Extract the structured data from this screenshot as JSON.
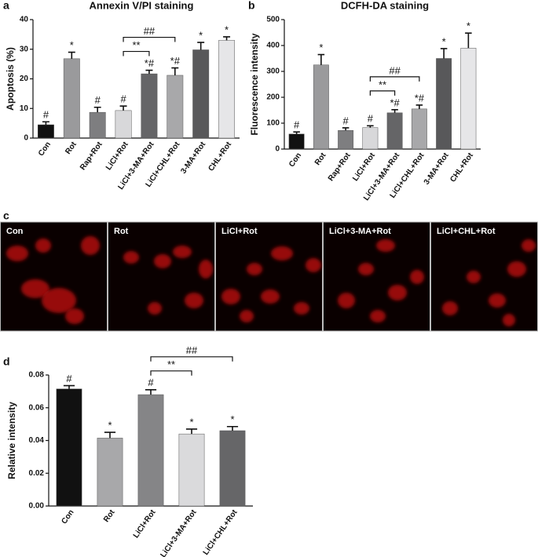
{
  "chart_data": [
    {
      "type": "bar",
      "panel_label": "a",
      "title": "Annexin V/PI staining",
      "y_label": "Apoptosis (%)",
      "categories": [
        "Con",
        "Rot",
        "Rap+Rot",
        "LiCl+Rot",
        "LiCl+3-MA+Rot",
        "LiCl+CHL+Rot",
        "3-MA+Rot",
        "CHL+Rot"
      ],
      "values": [
        4.5,
        26.8,
        8.7,
        9.3,
        21.7,
        21.2,
        29.8,
        33
      ],
      "errors": [
        1,
        2.2,
        1.7,
        1.5,
        1.2,
        2.5,
        2.5,
        1.2
      ],
      "colors": [
        "#111111",
        "#9a9a9c",
        "#7e7e80",
        "#d8d8da",
        "#656567",
        "#a8a8aa",
        "#58585a",
        "#e6e6e8"
      ],
      "annotations": [
        "#",
        "*",
        "#",
        "#",
        "*#",
        "*#",
        "*",
        "*"
      ],
      "brackets": [
        {
          "label": "**",
          "between": [
            "LiCl+Rot",
            "LiCl+3-MA+Rot"
          ]
        },
        {
          "label": "##",
          "between": [
            "LiCl+Rot",
            "LiCl+CHL+Rot"
          ]
        }
      ],
      "ylim": [
        0,
        40
      ],
      "yticks": [
        0,
        10,
        20,
        30,
        40
      ]
    },
    {
      "type": "bar",
      "panel_label": "b",
      "title": "DCFH-DA staining",
      "y_label": "Fluorescence intensity",
      "categories": [
        "Con",
        "Rot",
        "Rap+Rot",
        "LiCl+Rot",
        "LiCl+3-MA+Rot",
        "LiCl+CHL+Rot",
        "3-MA+Rot",
        "CHL+Rot"
      ],
      "values": [
        58,
        325,
        72,
        83,
        140,
        155,
        350,
        390
      ],
      "errors": [
        8,
        40,
        10,
        7,
        12,
        15,
        38,
        58
      ],
      "colors": [
        "#111111",
        "#9a9a9c",
        "#7e7e80",
        "#d8d8da",
        "#656567",
        "#a8a8aa",
        "#58585a",
        "#e6e6e8"
      ],
      "annotations": [
        "#",
        "*",
        "#",
        "#",
        "*#",
        "*#",
        "*",
        "*"
      ],
      "brackets": [
        {
          "label": "**",
          "between": [
            "LiCl+Rot",
            "LiCl+3-MA+Rot"
          ]
        },
        {
          "label": "##",
          "between": [
            "LiCl+Rot",
            "LiCl+CHL+Rot"
          ]
        }
      ],
      "ylim": [
        0,
        500
      ],
      "yticks": [
        0,
        100,
        200,
        300,
        400,
        500
      ]
    },
    {
      "type": "bar",
      "panel_label": "d",
      "y_label": "Relative intensity",
      "categories": [
        "Con",
        "Rot",
        "LiCl+Rot",
        "LiCl+3-MA+Rot",
        "LiCl+CHL+Rot"
      ],
      "values": [
        0.0715,
        0.0415,
        0.068,
        0.044,
        0.046
      ],
      "errors": [
        0.002,
        0.0035,
        0.003,
        0.003,
        0.0025
      ],
      "colors": [
        "#111111",
        "#a8a8aa",
        "#858587",
        "#dadadc",
        "#666668"
      ],
      "annotations": [
        "#",
        "*",
        "#",
        "*",
        "*"
      ],
      "brackets": [
        {
          "label": "**",
          "between": [
            "LiCl+Rot",
            "LiCl+3-MA+Rot"
          ]
        },
        {
          "label": "##",
          "between": [
            "LiCl+Rot",
            "LiCl+CHL+Rot"
          ]
        }
      ],
      "ylim": [
        0,
        0.08
      ],
      "yticks": [
        {
          "value": 0,
          "label": "0.00"
        },
        {
          "value": 0.02,
          "label": "0.02"
        },
        {
          "value": 0.04,
          "label": "0.04"
        },
        {
          "value": 0.06,
          "label": "0.06"
        },
        {
          "value": 0.08,
          "label": "0.08"
        }
      ]
    }
  ],
  "panel_c": {
    "panel_label": "c",
    "labels": [
      "Con",
      "Rot",
      "LiCl+Rot",
      "LiCl+3-MA+Rot",
      "LiCl+CHL+Rot"
    ]
  }
}
